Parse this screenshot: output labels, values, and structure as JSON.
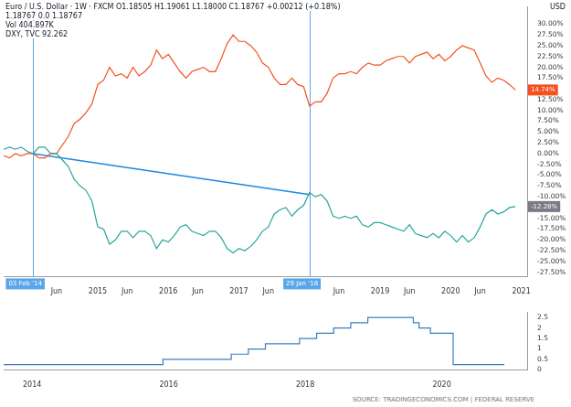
{
  "chart_data": [
    {
      "type": "line",
      "title": "Euro / U.S. Dollar · 1W · FXCM",
      "subtitle": "O1.18505 H1.19061 L1.18000 C1.18767 +0.00212 (+0.18%)",
      "annotations": [
        "1.18767  0.0  1.18767",
        "Vol 404.897K",
        "DXY, TVC 92.262"
      ],
      "ylabel": "USD",
      "categories": [
        null,
        null,
        null,
        null,
        null,
        "03 Feb '14",
        null,
        null,
        null,
        "Jun",
        null,
        null,
        null,
        null,
        null,
        null,
        "2015",
        null,
        null,
        null,
        null,
        "Jun",
        null,
        null,
        null,
        null,
        null,
        null,
        "2016",
        null,
        null,
        null,
        null,
        "Jun",
        null,
        null,
        null,
        null,
        null,
        null,
        "2017",
        null,
        null,
        null,
        null,
        "Jun",
        null,
        null,
        null,
        null,
        null,
        null,
        "29 Jan '18",
        null,
        null,
        null,
        null,
        "Jun",
        null,
        null,
        null,
        null,
        null,
        null,
        "2019",
        null,
        null,
        null,
        null,
        "Jun",
        null,
        null,
        null,
        null,
        null,
        null,
        "2020",
        null,
        null,
        null,
        null,
        "Jun",
        null,
        null,
        null,
        null,
        null,
        null,
        "2021",
        null
      ],
      "series": [
        {
          "name": "Euro / U.S. Dollar",
          "color": "#26a69a",
          "marker": "none",
          "line_style": "solid",
          "values": [
            1,
            1.5,
            1,
            1.5,
            0.5,
            0,
            1.5,
            1.5,
            0,
            0,
            -1.5,
            -3,
            -6,
            -7.5,
            -8.5,
            -11,
            -17,
            -17.5,
            -21,
            -20,
            -18,
            -18,
            -19.5,
            -18,
            -18,
            -19,
            -22,
            -20,
            -20.5,
            -19,
            -17,
            -16.5,
            -18,
            -18.5,
            -19,
            -18,
            -18,
            -19.5,
            -22,
            -23,
            -22,
            -22.5,
            -21.5,
            -20,
            -18,
            -17,
            -14,
            -13,
            -12.5,
            -14.5,
            -13,
            -12,
            -9,
            -10,
            -9.5,
            -11,
            -14.5,
            -15,
            -14.5,
            -15,
            -14.5,
            -16.5,
            -17,
            -16,
            -16,
            -16.5,
            -17,
            -17.5,
            -18,
            -16.5,
            -18.5,
            -19,
            -19.5,
            -18.5,
            -19.5,
            -18,
            -19,
            -20.5,
            -19,
            -20.5,
            -19.5,
            -17,
            -14,
            -13,
            -14,
            -13.5,
            -12.5,
            -12.28,
            null,
            null
          ]
        },
        {
          "name": "DXY",
          "color": "#f4511e",
          "marker": "none",
          "line_style": "solid",
          "values": [
            -0.5,
            -1,
            0,
            -0.5,
            0,
            0,
            -1,
            -1,
            0,
            0,
            2,
            4,
            7,
            8,
            9.5,
            11.5,
            16,
            17,
            20,
            18,
            18.5,
            17.5,
            20,
            18,
            19,
            20.5,
            24,
            22,
            23,
            21,
            19,
            17.5,
            19,
            19.5,
            20,
            19,
            19,
            22,
            25.5,
            27.5,
            26,
            26,
            25,
            23.5,
            21,
            20,
            17.5,
            16,
            16,
            17.5,
            16,
            15.5,
            11,
            12,
            12,
            14,
            17.5,
            18.5,
            18.5,
            19,
            18.5,
            20,
            21,
            20.5,
            20.5,
            21.5,
            22,
            22.5,
            22.5,
            21,
            22.5,
            23,
            23.5,
            22,
            23,
            21.5,
            22.5,
            24,
            25,
            24.5,
            24,
            21,
            18,
            16.5,
            17.5,
            17,
            16,
            14.74,
            null,
            null
          ]
        },
        {
          "color": "#1e88e5",
          "marker": "none",
          "line_style": "solid",
          "x": [
            "03 Feb '14",
            "29 Jan '18"
          ],
          "values": [
            0,
            -9.5
          ]
        }
      ],
      "vlines": {
        "x": [
          "03 Feb '14",
          "29 Jan '18"
        ],
        "color": "#5aa6e8"
      },
      "price_labels": [
        {
          "value": 14.74,
          "label": "14.74%",
          "color": "#f4511e"
        },
        {
          "value": -12.28,
          "label": "-12.28%",
          "color": "#787b86"
        }
      ],
      "ylim": [
        -28.5,
        34
      ],
      "yticks": [
        {
          "value": 30,
          "label": "30.00%"
        },
        {
          "value": 27.5,
          "label": "27.50%"
        },
        {
          "value": 25,
          "label": "25.00%"
        },
        {
          "value": 22.5,
          "label": "22.50%"
        },
        {
          "value": 20,
          "label": "20.00%"
        },
        {
          "value": 17.5,
          "label": "17.50%"
        },
        {
          "value": 12.5,
          "label": "12.50%"
        },
        {
          "value": 10,
          "label": "10.00%"
        },
        {
          "value": 7.5,
          "label": "7.50%"
        },
        {
          "value": 5,
          "label": "5.00%"
        },
        {
          "value": 2.5,
          "label": "2.50%"
        },
        {
          "value": 0,
          "label": "0.00%"
        },
        {
          "value": -2.5,
          "label": "-2.50%"
        },
        {
          "value": -5,
          "label": "-5.00%"
        },
        {
          "value": -7.5,
          "label": "-7.50%"
        },
        {
          "value": -10,
          "label": "-10.00%"
        },
        {
          "value": -15,
          "label": "-15.00%"
        },
        {
          "value": -17.5,
          "label": "-17.50%"
        },
        {
          "value": -20,
          "label": "-20.00%"
        },
        {
          "value": -22.5,
          "label": "-22.50%"
        },
        {
          "value": -25,
          "label": "-25.00%"
        },
        {
          "value": -27.5,
          "label": "-27.50%"
        }
      ],
      "grid": false
    },
    {
      "type": "line",
      "annotations": [
        "SOURCE: TRADINGECONOMICS.COM | FEDERAL RESERVE"
      ],
      "categories": [
        null,
        null,
        null,
        null,
        null,
        "2014",
        null,
        null,
        null,
        null,
        null,
        null,
        null,
        null,
        null,
        null,
        null,
        null,
        null,
        null,
        null,
        null,
        null,
        null,
        null,
        null,
        null,
        null,
        null,
        "2016",
        null,
        null,
        null,
        null,
        null,
        null,
        null,
        null,
        null,
        null,
        null,
        null,
        null,
        null,
        null,
        null,
        null,
        null,
        null,
        null,
        null,
        null,
        null,
        "2018",
        null,
        null,
        null,
        null,
        null,
        null,
        null,
        null,
        null,
        null,
        null,
        null,
        null,
        null,
        null,
        null,
        null,
        null,
        null,
        null,
        null,
        null,
        null,
        "2020",
        null,
        null,
        null,
        null,
        null,
        null,
        null,
        null,
        null,
        null,
        null,
        null,
        null,
        null,
        null
      ],
      "series": [
        {
          "color": "#3a7dc1",
          "marker": "none",
          "line_style": "step",
          "values": [
            0.25,
            0.25,
            0.25,
            0.25,
            0.25,
            0.25,
            0.25,
            0.25,
            0.25,
            0.25,
            0.25,
            0.25,
            0.25,
            0.25,
            0.25,
            0.25,
            0.25,
            0.25,
            0.25,
            0.25,
            0.25,
            0.25,
            0.25,
            0.25,
            0.25,
            0.25,
            0.25,
            0.25,
            0.5,
            0.5,
            0.5,
            0.5,
            0.5,
            0.5,
            0.5,
            0.5,
            0.5,
            0.5,
            0.5,
            0.5,
            0.75,
            0.75,
            0.75,
            1,
            1,
            1,
            1.25,
            1.25,
            1.25,
            1.25,
            1.25,
            1.25,
            1.5,
            1.5,
            1.5,
            1.75,
            1.75,
            1.75,
            2,
            2,
            2,
            2.25,
            2.25,
            2.25,
            2.5,
            2.5,
            2.5,
            2.5,
            2.5,
            2.5,
            2.5,
            2.5,
            2.25,
            2,
            2,
            1.75,
            1.75,
            1.75,
            1.75,
            0.25,
            0.25,
            0.25,
            0.25,
            0.25,
            0.25,
            0.25,
            0.25,
            0.25,
            0.25,
            null,
            null,
            null,
            null
          ]
        }
      ],
      "ylim": [
        0,
        2.75
      ],
      "yticks": [
        0,
        0.5,
        1,
        1.5,
        2,
        2.5
      ],
      "grid": false
    }
  ]
}
